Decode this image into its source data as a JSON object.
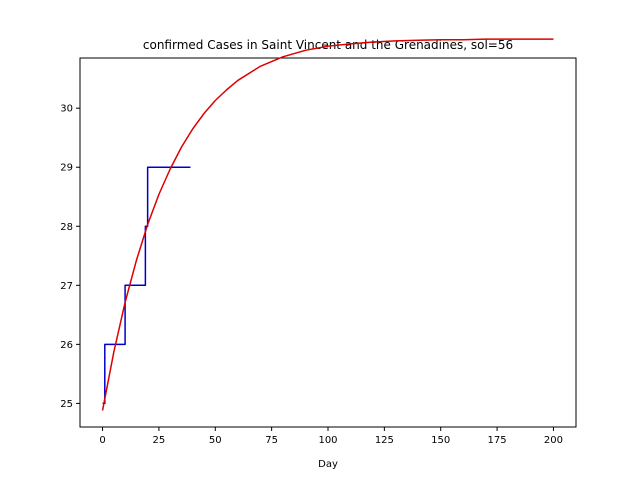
{
  "chart_data": {
    "type": "line",
    "title": "confirmed Cases in Saint Vincent and the Grenadines, sol=56",
    "xlabel": "Day",
    "ylabel": "",
    "xlim": [
      -10,
      210
    ],
    "ylim": [
      24.6,
      30.85
    ],
    "x_ticks": [
      0,
      25,
      50,
      75,
      100,
      125,
      150,
      175,
      200
    ],
    "y_ticks": [
      25,
      26,
      27,
      28,
      29,
      30
    ],
    "x_tick_labels": [
      "0",
      "25",
      "50",
      "75",
      "100",
      "125",
      "150",
      "175",
      "200"
    ],
    "y_tick_labels": [
      "25",
      "26",
      "27",
      "28",
      "29",
      "30"
    ],
    "grid": false,
    "series": [
      {
        "color": "#0000cc",
        "style": "step",
        "x": [
          0,
          1,
          1,
          10,
          10,
          19,
          19,
          20,
          20,
          39
        ],
        "y": [
          25,
          25,
          26,
          26,
          27,
          27,
          28,
          28,
          29,
          29
        ]
      },
      {
        "color": "#dd0000",
        "style": "smooth",
        "x": [
          0,
          5,
          10,
          15,
          20,
          25,
          30,
          35,
          40,
          45,
          50,
          55,
          60,
          70,
          80,
          90,
          100,
          110,
          120,
          130,
          140,
          150,
          160,
          170,
          180,
          190,
          200
        ],
        "y": [
          24.88,
          25.87,
          26.71,
          27.42,
          28.03,
          28.54,
          28.97,
          29.34,
          29.65,
          29.91,
          30.13,
          30.31,
          30.47,
          30.71,
          30.87,
          30.98,
          31.05,
          31.09,
          31.12,
          31.14,
          31.15,
          31.16,
          31.16,
          31.17,
          31.17,
          31.17,
          31.17
        ]
      }
    ]
  }
}
